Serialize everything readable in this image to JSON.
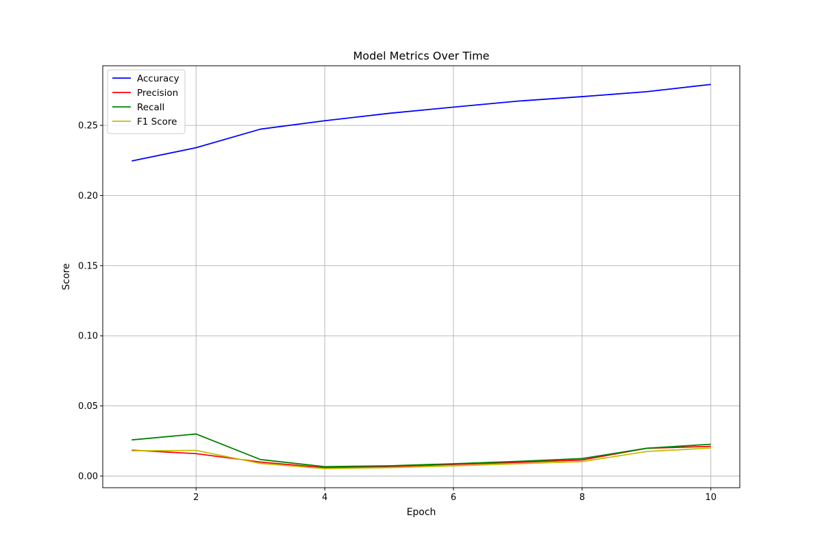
{
  "chart_data": {
    "type": "line",
    "title": "Model Metrics Over Time",
    "xlabel": "Epoch",
    "ylabel": "Score",
    "x": [
      1,
      2,
      3,
      4,
      5,
      6,
      7,
      8,
      9,
      10
    ],
    "xlim": [
      0.55,
      10.45
    ],
    "ylim": [
      -0.0083,
      0.2925
    ],
    "xticks": [
      2,
      4,
      6,
      8,
      10
    ],
    "yticks": [
      0.0,
      0.05,
      0.1,
      0.15,
      0.2,
      0.25
    ],
    "xtick_labels": [
      "2",
      "4",
      "6",
      "8",
      "10"
    ],
    "ytick_labels": [
      "0.00",
      "0.05",
      "0.10",
      "0.15",
      "0.20",
      "0.25"
    ],
    "grid": true,
    "legend_position": "top-left",
    "series": [
      {
        "name": "Accuracy",
        "color": "#0000ff",
        "values": [
          0.2246,
          0.2341,
          0.2473,
          0.2533,
          0.2586,
          0.263,
          0.2673,
          0.2705,
          0.274,
          0.2792
        ]
      },
      {
        "name": "Precision",
        "color": "#ff0000",
        "values": [
          0.0185,
          0.016,
          0.01,
          0.006,
          0.0068,
          0.0083,
          0.0098,
          0.0115,
          0.0198,
          0.0212
        ]
      },
      {
        "name": "Recall",
        "color": "#008000",
        "values": [
          0.0258,
          0.03,
          0.0118,
          0.0067,
          0.0073,
          0.0088,
          0.0105,
          0.0125,
          0.0198,
          0.0227
        ]
      },
      {
        "name": "F1 Score",
        "color": "#bfbf00",
        "values": [
          0.018,
          0.0183,
          0.009,
          0.0053,
          0.006,
          0.0073,
          0.0088,
          0.0103,
          0.0175,
          0.02
        ]
      }
    ]
  }
}
